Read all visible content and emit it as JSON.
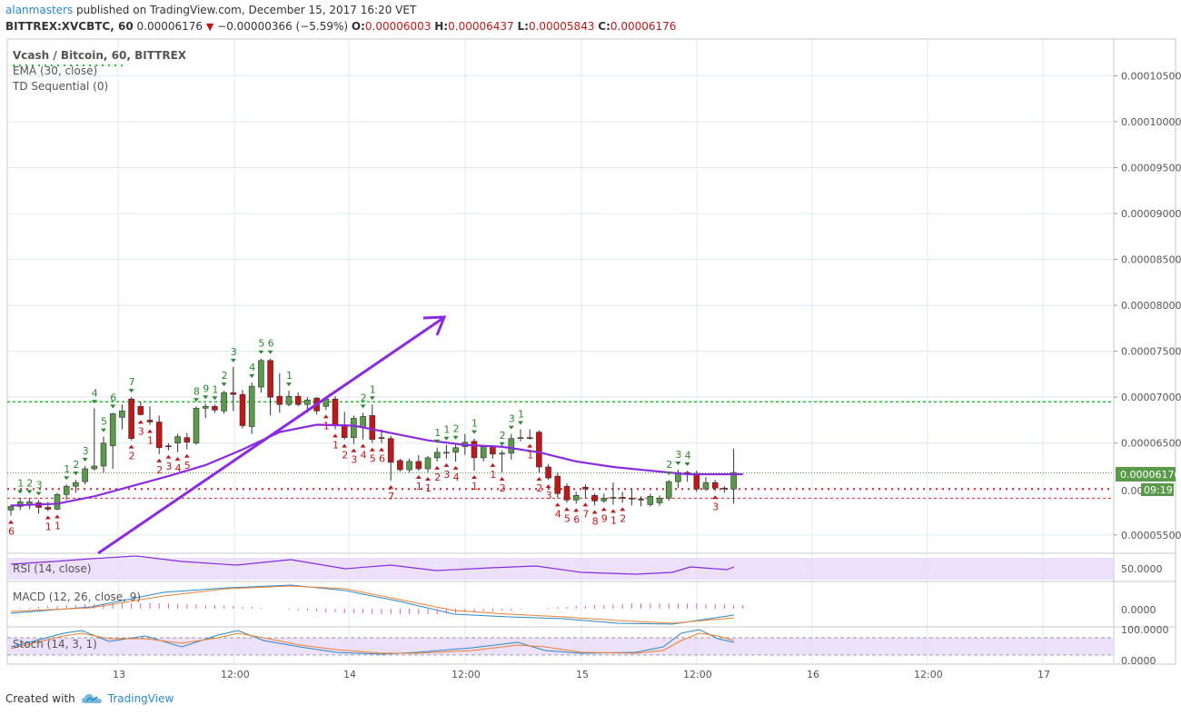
{
  "header": {
    "author": "alanmasters",
    "published_text": "published on TradingView.com, December 15, 2017 16:20 VET",
    "symbol_line": "BITTREX:XVCBTC, 60",
    "last": "0.00006176",
    "change": "−0.00000366 (−5.59%)",
    "o_label": "O:",
    "o_value": "0.00006003",
    "h_label": "H:",
    "h_value": "0.00006437",
    "l_label": "L:",
    "l_value": "0.00005843",
    "c_label": "C:",
    "c_value": "0.00006176"
  },
  "legend": {
    "title": "Vcash / Bitcoin, 60, BITTREX",
    "ema": "EMA (30, close)",
    "td": "TD Sequential (0)"
  },
  "price_axis": {
    "labels": [
      "0.00010500",
      "0.00010000",
      "0.00009500",
      "0.00009000",
      "0.00008500",
      "0.00008000",
      "0.00007500",
      "0.00007000",
      "0.00006500",
      "0.00005500"
    ],
    "current_price_label": "0.00006176",
    "countdown_label": "09:19",
    "partial_label": "0.00"
  },
  "time_axis": {
    "labels": [
      "13",
      "12:00",
      "14",
      "12:00",
      "15",
      "12:00",
      "16",
      "12:00",
      "17"
    ]
  },
  "indicators": {
    "rsi_label": "RSI (14, close)",
    "rsi_axis": "50.0000",
    "macd_label": "MACD (12, 26, close, 9)",
    "macd_axis": "0.0000",
    "stoch_label": "Stoch (14, 3, 1)",
    "stoch_axis_top": "100.0000",
    "stoch_axis_bottom": "0.0000"
  },
  "footer": {
    "created_with": "Created with",
    "brand": "TradingView"
  },
  "colors": {
    "up_candle": "#5a9a4a",
    "down_candle": "#c01818",
    "ema": "#8a2be2",
    "td_buy": "#c01818",
    "td_sell": "#2a8a2a",
    "support": "#e02020",
    "resistance": "#22c02a",
    "panel_fill": "#e8d8f8"
  },
  "chart_data": {
    "type": "candlestick",
    "symbol": "BITTREX:XVCBTC",
    "interval": "60",
    "y_axis_range": [
      5.3e-05,
      0.000109
    ],
    "x_axis_ticks": [
      "13",
      "12:00",
      "14",
      "12:00",
      "15",
      "12:00",
      "16",
      "12:00",
      "17"
    ],
    "candles": [
      {
        "o": 5.77e-05,
        "h": 5.83e-05,
        "l": 5.71e-05,
        "c": 5.81e-05
      },
      {
        "o": 5.81e-05,
        "h": 5.9e-05,
        "l": 5.77e-05,
        "c": 5.86e-05
      },
      {
        "o": 5.83e-05,
        "h": 5.9e-05,
        "l": 5.78e-05,
        "c": 5.86e-05
      },
      {
        "o": 5.85e-05,
        "h": 5.88e-05,
        "l": 5.73e-05,
        "c": 5.8e-05
      },
      {
        "o": 5.8e-05,
        "h": 5.86e-05,
        "l": 5.76e-05,
        "c": 5.78e-05
      },
      {
        "o": 5.78e-05,
        "h": 5.96e-05,
        "l": 5.77e-05,
        "c": 5.94e-05
      },
      {
        "o": 5.94e-05,
        "h": 6.05e-05,
        "l": 5.88e-05,
        "c": 6.03e-05
      },
      {
        "o": 6.03e-05,
        "h": 6.1e-05,
        "l": 5.96e-05,
        "c": 6.07e-05
      },
      {
        "o": 6.08e-05,
        "h": 6.25e-05,
        "l": 6.05e-05,
        "c": 6.22e-05
      },
      {
        "o": 6.22e-05,
        "h": 6.88e-05,
        "l": 6.2e-05,
        "c": 6.25e-05
      },
      {
        "o": 6.25e-05,
        "h": 6.57e-05,
        "l": 6.18e-05,
        "c": 6.5e-05
      },
      {
        "o": 6.47e-05,
        "h": 6.83e-05,
        "l": 6.22e-05,
        "c": 6.82e-05
      },
      {
        "o": 6.78e-05,
        "h": 6.92e-05,
        "l": 6.65e-05,
        "c": 6.85e-05
      },
      {
        "o": 6.98e-05,
        "h": 7e-05,
        "l": 6.53e-05,
        "c": 6.55e-05
      },
      {
        "o": 6.9e-05,
        "h": 6.95e-05,
        "l": 6.8e-05,
        "c": 6.81e-05
      },
      {
        "o": 6.75e-05,
        "h": 6.9e-05,
        "l": 6.7e-05,
        "c": 6.73e-05
      },
      {
        "o": 6.73e-05,
        "h": 6.8e-05,
        "l": 6.38e-05,
        "c": 6.45e-05
      },
      {
        "o": 6.47e-05,
        "h": 6.5e-05,
        "l": 6.42e-05,
        "c": 6.46e-05
      },
      {
        "o": 6.5e-05,
        "h": 6.6e-05,
        "l": 6.4e-05,
        "c": 6.57e-05
      },
      {
        "o": 6.56e-05,
        "h": 6.61e-05,
        "l": 6.43e-05,
        "c": 6.51e-05
      },
      {
        "o": 6.5e-05,
        "h": 6.9e-05,
        "l": 6.48e-05,
        "c": 6.88e-05
      },
      {
        "o": 6.88e-05,
        "h": 6.93e-05,
        "l": 6.77e-05,
        "c": 6.9e-05
      },
      {
        "o": 6.9e-05,
        "h": 6.92e-05,
        "l": 6.83e-05,
        "c": 6.86e-05
      },
      {
        "o": 6.85e-05,
        "h": 7.07e-05,
        "l": 6.82e-05,
        "c": 7.05e-05
      },
      {
        "o": 7.05e-05,
        "h": 7.33e-05,
        "l": 6.85e-05,
        "c": 7.03e-05
      },
      {
        "o": 7.03e-05,
        "h": 7.08e-05,
        "l": 6.66e-05,
        "c": 6.69e-05
      },
      {
        "o": 6.68e-05,
        "h": 7.16e-05,
        "l": 6.6e-05,
        "c": 7.12e-05
      },
      {
        "o": 7.11e-05,
        "h": 7.42e-05,
        "l": 7.05e-05,
        "c": 7.4e-05
      },
      {
        "o": 7.4e-05,
        "h": 7.42e-05,
        "l": 6.8e-05,
        "c": 7e-05
      },
      {
        "o": 7.01e-05,
        "h": 7.26e-05,
        "l": 6.83e-05,
        "c": 6.92e-05
      },
      {
        "o": 6.92e-05,
        "h": 7.07e-05,
        "l": 6.9e-05,
        "c": 7.01e-05
      },
      {
        "o": 7.01e-05,
        "h": 7.05e-05,
        "l": 6.9e-05,
        "c": 6.92e-05
      },
      {
        "o": 6.92e-05,
        "h": 7e-05,
        "l": 6.83e-05,
        "c": 6.97e-05
      },
      {
        "o": 6.99e-05,
        "h": 7e-05,
        "l": 6.81e-05,
        "c": 6.85e-05
      },
      {
        "o": 6.9e-05,
        "h": 7e-05,
        "l": 6.86e-05,
        "c": 6.98e-05
      },
      {
        "o": 6.98e-05,
        "h": 7.01e-05,
        "l": 6.65e-05,
        "c": 6.7e-05
      },
      {
        "o": 6.7e-05,
        "h": 6.84e-05,
        "l": 6.54e-05,
        "c": 6.56e-05
      },
      {
        "o": 6.56e-05,
        "h": 6.8e-05,
        "l": 6.49e-05,
        "c": 6.77e-05
      },
      {
        "o": 6.67e-05,
        "h": 6.83e-05,
        "l": 6.54e-05,
        "c": 6.79e-05
      },
      {
        "o": 6.8e-05,
        "h": 6.92e-05,
        "l": 6.5e-05,
        "c": 6.54e-05
      },
      {
        "o": 6.56e-05,
        "h": 6.65e-05,
        "l": 6.5e-05,
        "c": 6.55e-05
      },
      {
        "o": 6.55e-05,
        "h": 6.58e-05,
        "l": 6.09e-05,
        "c": 6.29e-05
      },
      {
        "o": 6.31e-05,
        "h": 6.33e-05,
        "l": 6.19e-05,
        "c": 6.21e-05
      },
      {
        "o": 6.21e-05,
        "h": 6.33e-05,
        "l": 6.18e-05,
        "c": 6.3e-05
      },
      {
        "o": 6.3e-05,
        "h": 6.37e-05,
        "l": 6.2e-05,
        "c": 6.22e-05
      },
      {
        "o": 6.22e-05,
        "h": 6.36e-05,
        "l": 6.18e-05,
        "c": 6.34e-05
      },
      {
        "o": 6.34e-05,
        "h": 6.45e-05,
        "l": 6.3e-05,
        "c": 6.4e-05
      },
      {
        "o": 6.4e-05,
        "h": 6.48e-05,
        "l": 6.33e-05,
        "c": 6.4e-05
      },
      {
        "o": 6.4e-05,
        "h": 6.49e-05,
        "l": 6.3e-05,
        "c": 6.45e-05
      },
      {
        "o": 6.46e-05,
        "h": 6.6e-05,
        "l": 6.37e-05,
        "c": 6.51e-05
      },
      {
        "o": 6.52e-05,
        "h": 6.55e-05,
        "l": 6.2e-05,
        "c": 6.34e-05
      },
      {
        "o": 6.34e-05,
        "h": 6.47e-05,
        "l": 6.3e-05,
        "c": 6.46e-05
      },
      {
        "o": 6.46e-05,
        "h": 6.48e-05,
        "l": 6.33e-05,
        "c": 6.38e-05
      },
      {
        "o": 6.38e-05,
        "h": 6.42e-05,
        "l": 6.18e-05,
        "c": 6.39e-05
      },
      {
        "o": 6.39e-05,
        "h": 6.6e-05,
        "l": 6.32e-05,
        "c": 6.55e-05
      },
      {
        "o": 6.55e-05,
        "h": 6.65e-05,
        "l": 6.52e-05,
        "c": 6.56e-05
      },
      {
        "o": 6.56e-05,
        "h": 6.65e-05,
        "l": 6.54e-05,
        "c": 6.55e-05
      },
      {
        "o": 6.62e-05,
        "h": 6.64e-05,
        "l": 6.18e-05,
        "c": 6.24e-05
      },
      {
        "o": 6.24e-05,
        "h": 6.27e-05,
        "l": 6.1e-05,
        "c": 6.12e-05
      },
      {
        "o": 6.14e-05,
        "h": 6.18e-05,
        "l": 5.9e-05,
        "c": 5.95e-05
      },
      {
        "o": 6.03e-05,
        "h": 6.06e-05,
        "l": 5.85e-05,
        "c": 5.88e-05
      },
      {
        "o": 5.88e-05,
        "h": 5.97e-05,
        "l": 5.84e-05,
        "c": 5.93e-05
      },
      {
        "o": 6.02e-05,
        "h": 6.05e-05,
        "l": 5.9e-05,
        "c": 6e-05
      },
      {
        "o": 5.93e-05,
        "h": 5.95e-05,
        "l": 5.82e-05,
        "c": 5.87e-05
      },
      {
        "o": 5.87e-05,
        "h": 5.95e-05,
        "l": 5.85e-05,
        "c": 5.9e-05
      },
      {
        "o": 5.9e-05,
        "h": 6.07e-05,
        "l": 5.83e-05,
        "c": 5.91e-05
      },
      {
        "o": 5.91e-05,
        "h": 5.97e-05,
        "l": 5.85e-05,
        "c": 5.9e-05
      },
      {
        "o": 5.9e-05,
        "h": 6e-05,
        "l": 5.82e-05,
        "c": 5.89e-05
      },
      {
        "o": 5.89e-05,
        "h": 5.92e-05,
        "l": 5.81e-05,
        "c": 5.88e-05
      },
      {
        "o": 5.83e-05,
        "h": 5.95e-05,
        "l": 5.81e-05,
        "c": 5.92e-05
      },
      {
        "o": 5.85e-05,
        "h": 5.93e-05,
        "l": 5.82e-05,
        "c": 5.9e-05
      },
      {
        "o": 5.9e-05,
        "h": 6.1e-05,
        "l": 5.87e-05,
        "c": 6.08e-05
      },
      {
        "o": 6.08e-05,
        "h": 6.21e-05,
        "l": 6.01e-05,
        "c": 6.18e-05
      },
      {
        "o": 6.18e-05,
        "h": 6.2e-05,
        "l": 6.08e-05,
        "c": 6.17e-05
      },
      {
        "o": 6.17e-05,
        "h": 6.2e-05,
        "l": 5.97e-05,
        "c": 6e-05
      },
      {
        "o": 6e-05,
        "h": 6.13e-05,
        "l": 5.98e-05,
        "c": 6.07e-05
      },
      {
        "o": 6.07e-05,
        "h": 6.1e-05,
        "l": 5.98e-05,
        "c": 6.01e-05
      },
      {
        "o": 6.01e-05,
        "h": 6.03e-05,
        "l": 5.96e-05,
        "c": 6e-05
      },
      {
        "o": 6e-05,
        "h": 6.44e-05,
        "l": 5.84e-05,
        "c": 6.18e-05
      }
    ],
    "ema_30": [
      [
        0,
        5.82e-05
      ],
      [
        5,
        5.84e-05
      ],
      [
        9,
        5.92e-05
      ],
      [
        13,
        6.03e-05
      ],
      [
        17,
        6.14e-05
      ],
      [
        21,
        6.26e-05
      ],
      [
        25,
        6.43e-05
      ],
      [
        29,
        6.62e-05
      ],
      [
        33,
        6.7e-05
      ],
      [
        37,
        6.69e-05
      ],
      [
        41,
        6.61e-05
      ],
      [
        45,
        6.53e-05
      ],
      [
        49,
        6.48e-05
      ],
      [
        53,
        6.46e-05
      ],
      [
        57,
        6.4e-05
      ],
      [
        61,
        6.3e-05
      ],
      [
        65,
        6.24e-05
      ],
      [
        69,
        6.2e-05
      ],
      [
        73,
        6.16e-05
      ],
      [
        77,
        6.16e-05
      ],
      [
        79,
        6.16e-05
      ]
    ],
    "td_sequential": {
      "buy_counts": [
        "6",
        "1",
        "1",
        "2",
        "3",
        "1",
        "2",
        "3",
        "4",
        "5",
        "1",
        "1",
        "2",
        "3",
        "4",
        "5",
        "6",
        "7",
        "1",
        "1",
        "2",
        "3",
        "4",
        "1",
        "1",
        "2",
        "1",
        "2",
        "3",
        "4",
        "5",
        "6",
        "7",
        "8",
        "9",
        "1",
        "2",
        "3"
      ],
      "sell_counts": [
        "1",
        "2",
        "3",
        "1",
        "2",
        "3",
        "4",
        "5",
        "6",
        "7",
        "8",
        "9",
        "1",
        "2",
        "3",
        "4",
        "5",
        "6",
        "1",
        "2",
        "1",
        "1",
        "1",
        "2",
        "1",
        "2",
        "3",
        "1",
        "2",
        "3",
        "4"
      ]
    },
    "horizontal_levels": {
      "resistance": 6.95e-05,
      "support_1": 6e-05,
      "support_2": 5.9e-05
    },
    "last_price": 6.176e-05
  }
}
